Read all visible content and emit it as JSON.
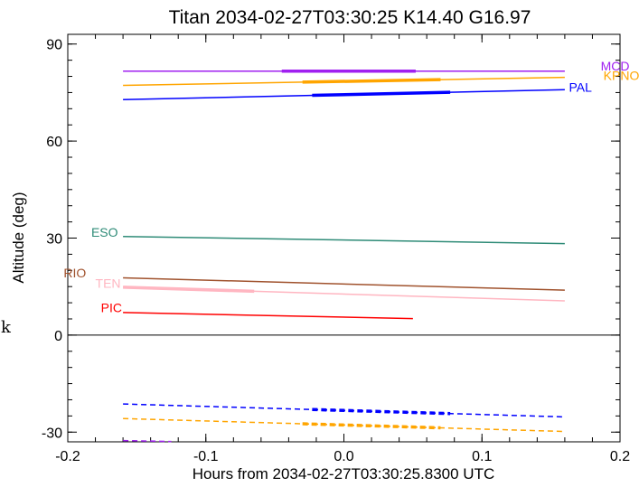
{
  "chart_data": {
    "type": "line",
    "title": "Titan 2034-02-27T03:30:25  K14.40  G16.97",
    "xlabel": "Hours from 2034-02-27T03:30:25.8300 UTC",
    "ylabel": "Altitude (deg)",
    "xlim": [
      -0.2,
      0.2
    ],
    "ylim": [
      -33,
      93
    ],
    "xticks": [
      -0.2,
      -0.1,
      0.0,
      0.1,
      0.2
    ],
    "xtick_labels": [
      "-0.2",
      "-0.1",
      "0.0",
      "0.1",
      "0.2"
    ],
    "yticks": [
      -30,
      0,
      30,
      60,
      90
    ],
    "ytick_labels": [
      "-30",
      "0",
      "30",
      "60",
      "90"
    ],
    "grid": false,
    "zero_line": true,
    "series": [
      {
        "name": "MCD",
        "color": "#a020f0",
        "x": [
          -0.16,
          0.16
        ],
        "y": [
          81.6,
          81.6
        ],
        "thick": [
          -0.045,
          0.052
        ],
        "label_at": [
          0.186,
          83.2
        ]
      },
      {
        "name": "KPNO",
        "color": "#ffa500",
        "x": [
          -0.16,
          0.16
        ],
        "y": [
          77.2,
          79.7
        ],
        "thick": [
          -0.03,
          0.07
        ],
        "label_at": [
          0.188,
          80.3
        ]
      },
      {
        "name": "PAL",
        "color": "#0000ff",
        "x": [
          -0.16,
          0.16
        ],
        "y": [
          72.8,
          75.9
        ],
        "thick": [
          -0.023,
          0.077
        ],
        "label_at": [
          0.163,
          76.7
        ]
      },
      {
        "name": "ESO",
        "color": "#2e8b77",
        "x": [
          -0.16,
          0.16
        ],
        "y": [
          30.5,
          28.3
        ],
        "label_at": [
          -0.183,
          31.8
        ]
      },
      {
        "name": "RIO",
        "color": "#a0522d",
        "x": [
          -0.16,
          0.16
        ],
        "y": [
          17.7,
          13.9
        ],
        "label_at": [
          -0.203,
          19.2
        ]
      },
      {
        "name": "TEN",
        "color": "#ffb6c1",
        "x": [
          -0.16,
          0.16
        ],
        "y": [
          14.8,
          10.6
        ],
        "thick": [
          -0.16,
          -0.065
        ],
        "label_at": [
          -0.18,
          16.1
        ]
      },
      {
        "name": "PIC",
        "color": "#ff0000",
        "x": [
          -0.16,
          0.05
        ],
        "y": [
          7.0,
          5.1
        ],
        "label_at": [
          -0.176,
          8.5
        ]
      },
      {
        "color": "#0000ff",
        "dashed": true,
        "x": [
          -0.16,
          0.16
        ],
        "y": [
          -21.3,
          -25.3
        ],
        "thick": [
          -0.023,
          0.077
        ]
      },
      {
        "color": "#ffa500",
        "dashed": true,
        "x": [
          -0.16,
          0.16
        ],
        "y": [
          -25.8,
          -29.8
        ],
        "thick": [
          -0.03,
          0.07
        ]
      },
      {
        "color": "#a020f0",
        "dashed": true,
        "x": [
          -0.16,
          -0.125
        ],
        "y": [
          -32.6,
          -32.9
        ]
      }
    ]
  },
  "stray_char": "k"
}
